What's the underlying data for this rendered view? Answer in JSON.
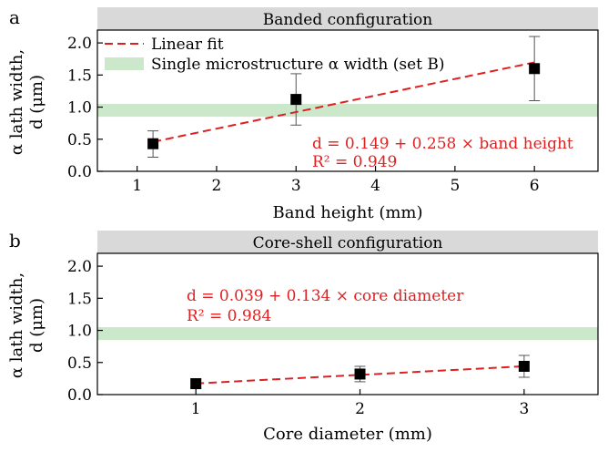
{
  "figure": {
    "panel_a_letter": "a",
    "panel_b_letter": "b"
  },
  "chart_data": [
    {
      "type": "scatter",
      "panel": "a",
      "strip_title": "Banded configuration",
      "xlabel": "Band height (mm)",
      "ylabel_line1": "α lath width,",
      "ylabel_line2": "d (μm)",
      "xlim": [
        0.5,
        6.8
      ],
      "ylim": [
        0.0,
        2.2
      ],
      "xticks": [
        "1",
        "2",
        "3",
        "4",
        "5",
        "6"
      ],
      "yticks": [
        "0.0",
        "0.5",
        "1.0",
        "1.5",
        "2.0"
      ],
      "grid": false,
      "legend_position": "top-left",
      "legend": [
        "Linear fit",
        "Single microstructure α width (set B)"
      ],
      "band": {
        "ymin": 0.85,
        "ymax": 1.05,
        "color": "#cbe8cb"
      },
      "points": [
        {
          "x": 1.2,
          "y": 0.43,
          "err_low": 0.22,
          "err_high": 0.63
        },
        {
          "x": 3.0,
          "y": 1.12,
          "err_low": 0.72,
          "err_high": 1.52
        },
        {
          "x": 6.0,
          "y": 1.6,
          "err_low": 1.1,
          "err_high": 2.1
        }
      ],
      "fit": {
        "x_start": 1.2,
        "x_end": 6.0,
        "intercept": 0.149,
        "slope": 0.258,
        "color": "#e02020"
      },
      "equation_line1": "d = 0.149 + 0.258 × band height",
      "equation_line2": "R² = 0.949"
    },
    {
      "type": "scatter",
      "panel": "b",
      "strip_title": "Core-shell configuration",
      "xlabel": "Core diameter (mm)",
      "ylabel_line1": "α lath width,",
      "ylabel_line2": "d (μm)",
      "xlim": [
        0.4,
        3.45
      ],
      "ylim": [
        0.0,
        2.2
      ],
      "xticks": [
        "1",
        "2",
        "3"
      ],
      "yticks": [
        "0.0",
        "0.5",
        "1.0",
        "1.5",
        "2.0"
      ],
      "grid": false,
      "band": {
        "ymin": 0.85,
        "ymax": 1.05,
        "color": "#cbe8cb"
      },
      "points": [
        {
          "x": 1.0,
          "y": 0.17,
          "err_low": 0.11,
          "err_high": 0.24
        },
        {
          "x": 2.0,
          "y": 0.32,
          "err_low": 0.2,
          "err_high": 0.44
        },
        {
          "x": 3.0,
          "y": 0.44,
          "err_low": 0.27,
          "err_high": 0.61
        }
      ],
      "fit": {
        "x_start": 1.0,
        "x_end": 3.0,
        "intercept": 0.039,
        "slope": 0.134,
        "color": "#e02020"
      },
      "equation_line1": "d = 0.039 + 0.134 × core diameter",
      "equation_line2": "R² = 0.984"
    }
  ]
}
